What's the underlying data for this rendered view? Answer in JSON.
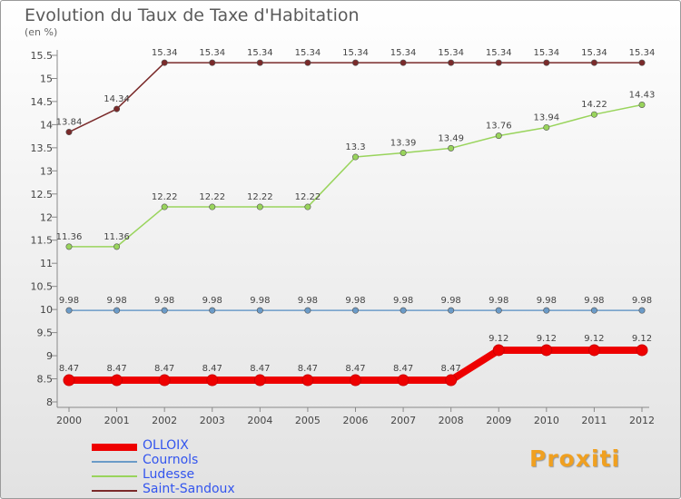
{
  "title": "Evolution du Taux de Taxe d'Habitation",
  "unit": "(en %)",
  "brand": "Proxiti",
  "chart_data": {
    "type": "line",
    "title": "Evolution du Taux de Taxe d'Habitation",
    "ylabel": "(en %)",
    "xlabel": "",
    "ylim": [
      8,
      15.5
    ],
    "yticks": [
      "8",
      "8.5",
      "9",
      "9.5",
      "10",
      "10.5",
      "11",
      "11.5",
      "12",
      "12.5",
      "13",
      "13.5",
      "14",
      "14.5",
      "15",
      "15.5"
    ],
    "grid": false,
    "legend_position": "bottom-left",
    "categories": [
      "2000",
      "2001",
      "2002",
      "2003",
      "2004",
      "2005",
      "2006",
      "2007",
      "2008",
      "2009",
      "2010",
      "2011",
      "2012"
    ],
    "series": [
      {
        "name": "OLLOIX",
        "color": "#ee0000",
        "values": [
          8.47,
          8.47,
          8.47,
          8.47,
          8.47,
          8.47,
          8.47,
          8.47,
          8.47,
          9.12,
          9.12,
          9.12,
          9.12
        ],
        "labels": [
          "8.47",
          "8.47",
          "8.47",
          "8.47",
          "8.47",
          "8.47",
          "8.47",
          "8.47",
          "8.47",
          "9.12",
          "9.12",
          "9.12",
          "9.12"
        ]
      },
      {
        "name": "Cournols",
        "color": "#6b9bc8",
        "values": [
          9.98,
          9.98,
          9.98,
          9.98,
          9.98,
          9.98,
          9.98,
          9.98,
          9.98,
          9.98,
          9.98,
          9.98,
          9.98
        ],
        "labels": [
          "9.98",
          "9.98",
          "9.98",
          "9.98",
          "9.98",
          "9.98",
          "9.98",
          "9.98",
          "9.98",
          "9.98",
          "9.98",
          "9.98",
          "9.98"
        ]
      },
      {
        "name": "Ludesse",
        "color": "#99d45c",
        "values": [
          11.36,
          11.36,
          12.22,
          12.22,
          12.22,
          12.22,
          13.3,
          13.39,
          13.49,
          13.76,
          13.94,
          14.22,
          14.43
        ],
        "labels": [
          "11.36",
          "11.36",
          "12.22",
          "12.22",
          "12.22",
          "12.22",
          "13.3",
          "13.39",
          "13.49",
          "13.76",
          "13.94",
          "14.22",
          "14.43"
        ]
      },
      {
        "name": "Saint-Sandoux",
        "color": "#7a2a2a",
        "values": [
          13.84,
          14.34,
          15.34,
          15.34,
          15.34,
          15.34,
          15.34,
          15.34,
          15.34,
          15.34,
          15.34,
          15.34,
          15.34
        ],
        "labels": [
          "13.84",
          "14.34",
          "15.34",
          "15.34",
          "15.34",
          "15.34",
          "15.34",
          "15.34",
          "15.34",
          "15.34",
          "15.34",
          "15.34",
          "15.34"
        ]
      }
    ]
  }
}
